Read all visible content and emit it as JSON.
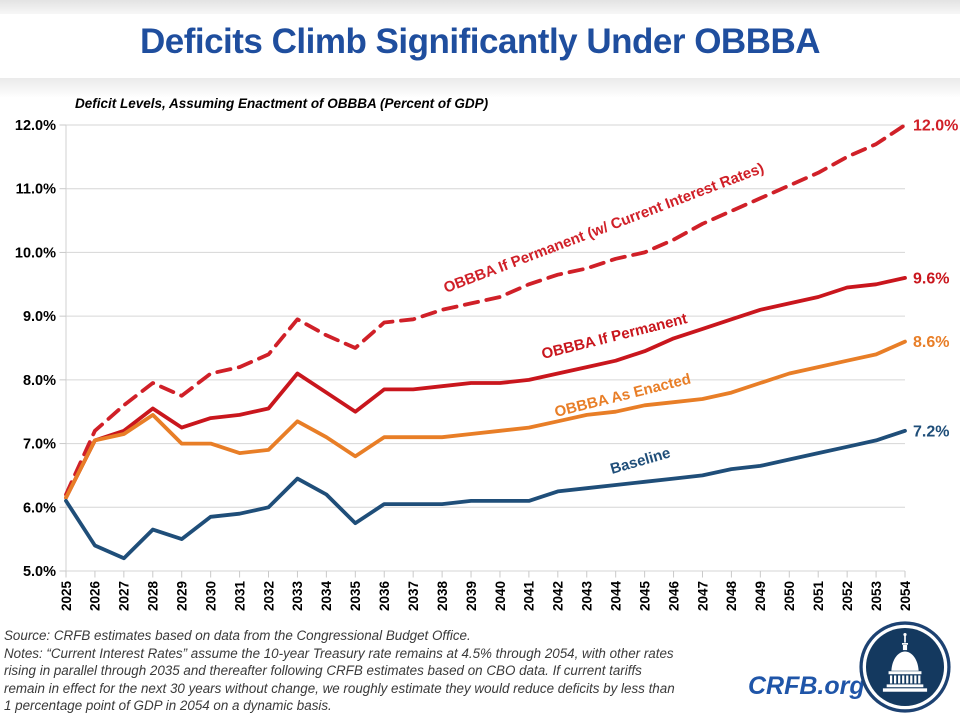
{
  "header": {
    "title": "Deficits Climb Significantly Under OBBBA"
  },
  "chart_data": {
    "type": "line",
    "title": "Deficit Levels, Assuming Enactment of OBBBA (Percent of GDP)",
    "xlabel": "",
    "ylabel": "Percent of GDP",
    "ylim": [
      5.0,
      12.0
    ],
    "grid": "horizontal",
    "legend_position": "inline-labels",
    "yticks": [
      "5.0%",
      "6.0%",
      "7.0%",
      "8.0%",
      "9.0%",
      "10.0%",
      "11.0%",
      "12.0%"
    ],
    "x": [
      2025,
      2026,
      2027,
      2028,
      2029,
      2030,
      2031,
      2032,
      2033,
      2034,
      2035,
      2036,
      2037,
      2038,
      2039,
      2040,
      2041,
      2042,
      2043,
      2044,
      2045,
      2046,
      2047,
      2048,
      2049,
      2050,
      2051,
      2052,
      2053,
      2054
    ],
    "series": [
      {
        "name": "OBBBA If Permanent (w/ Current Interest Rates)",
        "style": "dashed",
        "color": "#D02028",
        "end_label": "12.0%",
        "values": [
          6.2,
          7.2,
          7.6,
          7.95,
          7.75,
          8.1,
          8.2,
          8.4,
          8.95,
          8.7,
          8.5,
          8.9,
          8.95,
          9.1,
          9.2,
          9.3,
          9.5,
          9.65,
          9.75,
          9.9,
          10.0,
          10.2,
          10.45,
          10.65,
          10.85,
          11.05,
          11.25,
          11.5,
          11.7,
          12.0
        ]
      },
      {
        "name": "OBBBA If Permanent",
        "style": "solid",
        "color": "#C9161D",
        "end_label": "9.6%",
        "values": [
          6.15,
          7.05,
          7.2,
          7.55,
          7.25,
          7.4,
          7.45,
          7.55,
          8.1,
          7.8,
          7.5,
          7.85,
          7.85,
          7.9,
          7.95,
          7.95,
          8.0,
          8.1,
          8.2,
          8.3,
          8.45,
          8.65,
          8.8,
          8.95,
          9.1,
          9.2,
          9.3,
          9.45,
          9.5,
          9.6
        ]
      },
      {
        "name": "OBBBA As Enacted",
        "style": "solid",
        "color": "#E87E27",
        "end_label": "8.6%",
        "values": [
          6.15,
          7.05,
          7.15,
          7.45,
          7.0,
          7.0,
          6.85,
          6.9,
          7.35,
          7.1,
          6.8,
          7.1,
          7.1,
          7.1,
          7.15,
          7.2,
          7.25,
          7.35,
          7.45,
          7.5,
          7.6,
          7.65,
          7.7,
          7.8,
          7.95,
          8.1,
          8.2,
          8.3,
          8.4,
          8.6
        ]
      },
      {
        "name": "Baseline",
        "style": "solid",
        "color": "#1F4E79",
        "end_label": "7.2%",
        "values": [
          6.1,
          5.4,
          5.2,
          5.65,
          5.5,
          5.85,
          5.9,
          6.0,
          6.45,
          6.2,
          5.75,
          6.05,
          6.05,
          6.05,
          6.1,
          6.1,
          6.1,
          6.25,
          6.3,
          6.35,
          6.4,
          6.45,
          6.5,
          6.6,
          6.65,
          6.75,
          6.85,
          6.95,
          7.05,
          7.2
        ]
      }
    ]
  },
  "footer": {
    "lines": [
      "Source: CRFB estimates based on data from the Congressional Budget Office.",
      "Notes: “Current Interest Rates” assume the 10-year Treasury rate remains at 4.5% through 2054, with other rates",
      "rising in parallel through 2035 and thereafter following CRFB estimates based on CBO data. If current tariffs",
      "remain in effect for the next 30 years without change, we roughly estimate they would reduce deficits by less than",
      "1 percentage point of GDP in 2054 on a dynamic basis."
    ]
  },
  "branding": {
    "site": "CRFB.org"
  }
}
